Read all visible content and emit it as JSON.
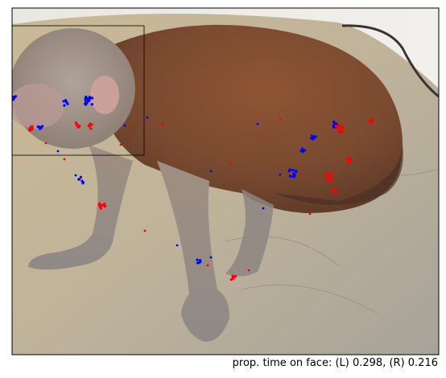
{
  "caption": "prop. time on face: (L) 0.298, (R) 0.216",
  "colors": {
    "left_gaze": "#0000ff",
    "right_gaze": "#ff0000",
    "face_box": "#000000"
  },
  "scene": {
    "subject": "macaque monkey on a stone floor",
    "face_roi": "face region rectangle"
  }
}
